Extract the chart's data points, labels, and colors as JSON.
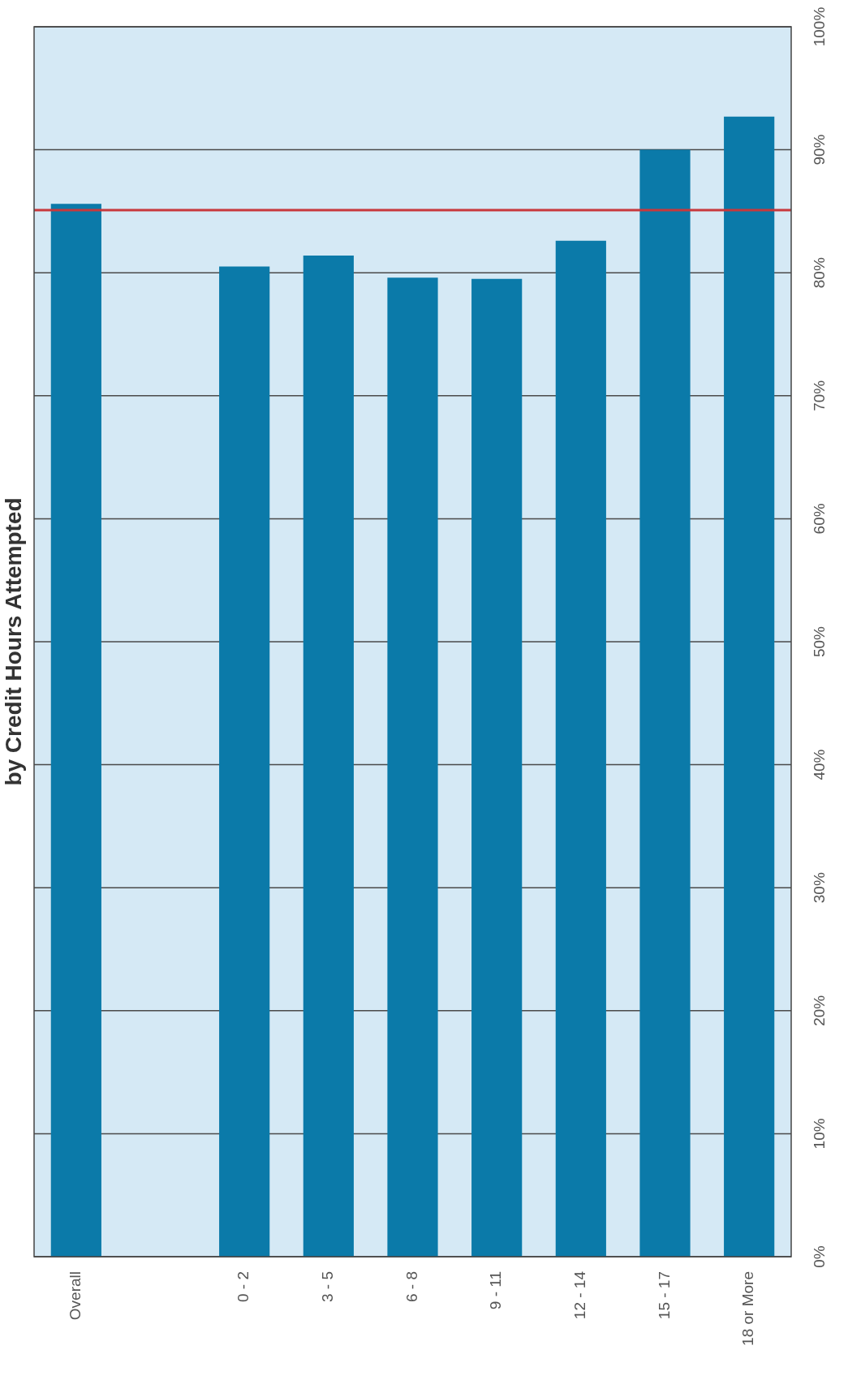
{
  "chart_data": {
    "type": "bar",
    "title": "by Credit Hours Attempted",
    "categories": [
      "Overall",
      null,
      "0 - 2",
      "3 - 5",
      "6 - 8",
      "9 - 11",
      "12 - 14",
      "15 - 17",
      "18 or More"
    ],
    "values": [
      85.6,
      null,
      80.5,
      81.4,
      79.6,
      79.5,
      82.6,
      90.0,
      92.7
    ],
    "color": "#0b7aa9",
    "ylim": [
      0,
      100
    ],
    "yticks": [
      {
        "value": 0,
        "label": "0%"
      },
      {
        "value": 10,
        "label": "10%"
      },
      {
        "value": 20,
        "label": "20%"
      },
      {
        "value": 30,
        "label": "30%"
      },
      {
        "value": 40,
        "label": "40%"
      },
      {
        "value": 50,
        "label": "50%"
      },
      {
        "value": 60,
        "label": "60%"
      },
      {
        "value": 70,
        "label": "70%"
      },
      {
        "value": 80,
        "label": "80%"
      },
      {
        "value": 90,
        "label": "90%"
      },
      {
        "value": 100,
        "label": "100%"
      }
    ],
    "grid": "y",
    "legend": false,
    "ref_lines": [
      {
        "axis": "y",
        "value": 85.1,
        "color": "#c8383c"
      }
    ]
  }
}
